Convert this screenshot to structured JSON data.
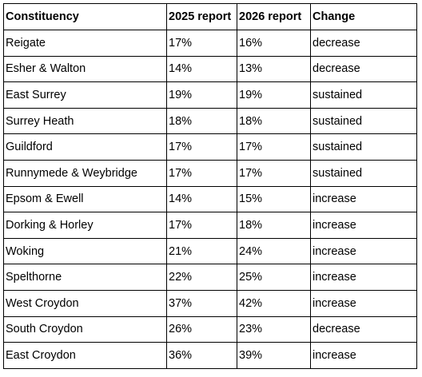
{
  "table": {
    "header": [
      "Constituency",
      "2025 report",
      "2026 report",
      "Change"
    ],
    "rows": [
      [
        "Reigate",
        "17%",
        "16%",
        "decrease"
      ],
      [
        "Esher & Walton",
        "14%",
        "13%",
        "decrease"
      ],
      [
        "East Surrey",
        "19%",
        "19%",
        "sustained"
      ],
      [
        "Surrey Heath",
        "18%",
        "18%",
        "sustained"
      ],
      [
        "Guildford",
        "17%",
        "17%",
        "sustained"
      ],
      [
        "Runnymede & Weybridge",
        "17%",
        "17%",
        "sustained"
      ],
      [
        "Epsom & Ewell",
        "14%",
        "15%",
        "increase"
      ],
      [
        "Dorking & Horley",
        "17%",
        "18%",
        "increase"
      ],
      [
        "Woking",
        "21%",
        "24%",
        "increase"
      ],
      [
        "Spelthorne",
        "22%",
        "25%",
        "increase"
      ],
      [
        "West Croydon",
        "37%",
        "42%",
        "increase"
      ],
      [
        "South Croydon",
        "26%",
        "23%",
        "decrease"
      ],
      [
        "East Croydon",
        "36%",
        "39%",
        "increase"
      ]
    ]
  }
}
